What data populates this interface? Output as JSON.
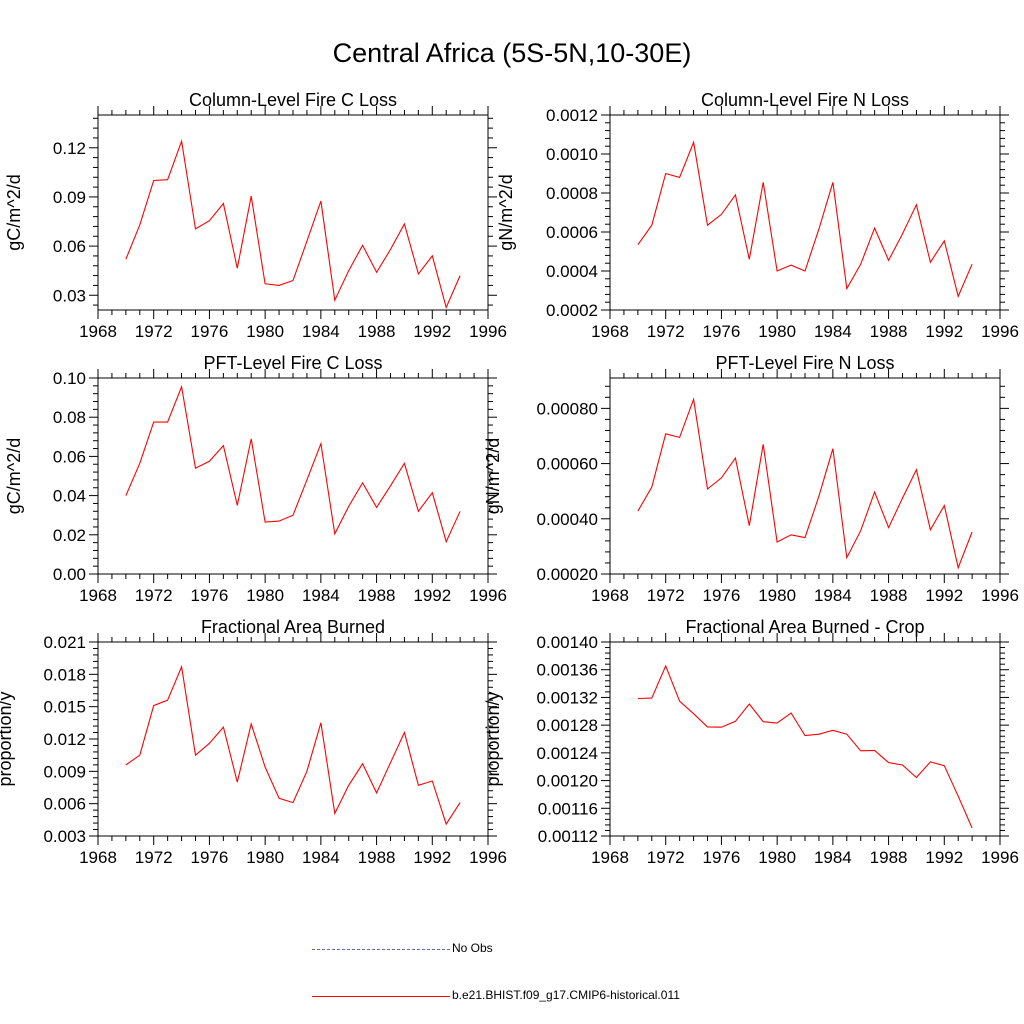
{
  "page": {
    "title": "Central Africa (5S-5N,10-30E)"
  },
  "legend": {
    "obs_label": "No Obs",
    "model_label": "b.e21.BHIST.f09_g17.CMIP6-historical.011",
    "obs_color": "#5a6aa8",
    "model_color": "#ff0000"
  },
  "chart_data": [
    {
      "type": "line",
      "title": "Column-Level Fire C Loss",
      "ylabel": "gC/m^2/d",
      "xlim": [
        1968,
        1996
      ],
      "ylim": [
        0.021,
        0.14
      ],
      "xticks": [
        "1968",
        "1972",
        "1976",
        "1980",
        "1984",
        "1988",
        "1992",
        "1996"
      ],
      "yticks": [
        {
          "v": 0.03,
          "l": "0.03"
        },
        {
          "v": 0.06,
          "l": "0.06"
        },
        {
          "v": 0.09,
          "l": "0.09"
        },
        {
          "v": 0.12,
          "l": "0.12"
        }
      ],
      "x": [
        1970,
        1971,
        1972,
        1973,
        1974,
        1975,
        1976,
        1977,
        1978,
        1979,
        1980,
        1981,
        1982,
        1983,
        1984,
        1985,
        1986,
        1987,
        1988,
        1989,
        1990,
        1991,
        1992,
        1993,
        1994
      ],
      "series": [
        {
          "values": [
            0.052,
            0.073,
            0.1,
            0.1005,
            0.124,
            0.0705,
            0.0755,
            0.086,
            0.0465,
            0.0905,
            0.037,
            0.036,
            0.039,
            0.063,
            0.0875,
            0.027,
            0.045,
            0.0605,
            0.044,
            0.058,
            0.0735,
            0.043,
            0.054,
            0.0225,
            0.042
          ]
        }
      ]
    },
    {
      "type": "line",
      "title": "Column-Level Fire N Loss",
      "ylabel": "gN/m^2/d",
      "xlim": [
        1968,
        1996
      ],
      "ylim": [
        0.0002,
        0.0012
      ],
      "xticks": [
        "1968",
        "1972",
        "1976",
        "1980",
        "1984",
        "1988",
        "1992",
        "1996"
      ],
      "yticks": [
        {
          "v": 0.0002,
          "l": "0.0002"
        },
        {
          "v": 0.0004,
          "l": "0.0004"
        },
        {
          "v": 0.0006,
          "l": "0.0006"
        },
        {
          "v": 0.0008,
          "l": "0.0008"
        },
        {
          "v": 0.001,
          "l": "0.0010"
        },
        {
          "v": 0.0012,
          "l": "0.0012"
        }
      ],
      "x": [
        1970,
        1971,
        1972,
        1973,
        1974,
        1975,
        1976,
        1977,
        1978,
        1979,
        1980,
        1981,
        1982,
        1983,
        1984,
        1985,
        1986,
        1987,
        1988,
        1989,
        1990,
        1991,
        1992,
        1993,
        1994
      ],
      "series": [
        {
          "values": [
            0.000535,
            0.000635,
            0.0009,
            0.00088,
            0.00106,
            0.000635,
            0.00069,
            0.00079,
            0.00046,
            0.000855,
            0.0004,
            0.00043,
            0.0004,
            0.000615,
            0.000855,
            0.00031,
            0.000435,
            0.00062,
            0.000455,
            0.00059,
            0.00074,
            0.000445,
            0.000555,
            0.00027,
            0.000435
          ]
        }
      ]
    },
    {
      "type": "line",
      "title": "PFT-Level Fire C Loss",
      "ylabel": "gC/m^2/d",
      "xlim": [
        1968,
        1996
      ],
      "ylim": [
        0,
        0.1
      ],
      "xticks": [
        "1968",
        "1972",
        "1976",
        "1980",
        "1984",
        "1988",
        "1992",
        "1996"
      ],
      "yticks": [
        {
          "v": 0,
          "l": "0.00"
        },
        {
          "v": 0.02,
          "l": "0.02"
        },
        {
          "v": 0.04,
          "l": "0.04"
        },
        {
          "v": 0.06,
          "l": "0.06"
        },
        {
          "v": 0.08,
          "l": "0.08"
        },
        {
          "v": 0.1,
          "l": "0.10"
        }
      ],
      "x": [
        1970,
        1971,
        1972,
        1973,
        1974,
        1975,
        1976,
        1977,
        1978,
        1979,
        1980,
        1981,
        1982,
        1983,
        1984,
        1985,
        1986,
        1987,
        1988,
        1989,
        1990,
        1991,
        1992,
        1993,
        1994
      ],
      "series": [
        {
          "values": [
            0.04,
            0.0565,
            0.0775,
            0.0775,
            0.0955,
            0.054,
            0.0575,
            0.0655,
            0.035,
            0.069,
            0.0265,
            0.027,
            0.03,
            0.048,
            0.0665,
            0.0205,
            0.0345,
            0.0465,
            0.034,
            0.045,
            0.0565,
            0.032,
            0.0415,
            0.0165,
            0.032
          ]
        }
      ]
    },
    {
      "type": "line",
      "title": "PFT-Level Fire N Loss",
      "ylabel": "gN/m^2/d",
      "xlim": [
        1968,
        1996
      ],
      "ylim": [
        0.0002,
        0.00091
      ],
      "xticks": [
        "1968",
        "1972",
        "1976",
        "1980",
        "1984",
        "1988",
        "1992",
        "1996"
      ],
      "yticks": [
        {
          "v": 0.0002,
          "l": "0.00020"
        },
        {
          "v": 0.0004,
          "l": "0.00040"
        },
        {
          "v": 0.0006,
          "l": "0.00060"
        },
        {
          "v": 0.0008,
          "l": "0.00080"
        }
      ],
      "x": [
        1970,
        1971,
        1972,
        1973,
        1974,
        1975,
        1976,
        1977,
        1978,
        1979,
        1980,
        1981,
        1982,
        1983,
        1984,
        1985,
        1986,
        1987,
        1988,
        1989,
        1990,
        1991,
        1992,
        1993,
        1994
      ],
      "series": [
        {
          "values": [
            0.000428,
            0.000515,
            0.000708,
            0.000695,
            0.000833,
            0.000508,
            0.000548,
            0.00062,
            0.000375,
            0.00067,
            0.000316,
            0.000342,
            0.000332,
            0.000482,
            0.000654,
            0.000259,
            0.000357,
            0.000497,
            0.000368,
            0.000475,
            0.000578,
            0.00036,
            0.000448,
            0.000223,
            0.000352
          ]
        }
      ]
    },
    {
      "type": "line",
      "title": "Fractional Area Burned",
      "ylabel": "proportion/y",
      "xlim": [
        1968,
        1996
      ],
      "ylim": [
        0.003,
        0.021
      ],
      "xticks": [
        "1968",
        "1972",
        "1976",
        "1980",
        "1984",
        "1988",
        "1992",
        "1996"
      ],
      "yticks": [
        {
          "v": 0.003,
          "l": "0.003"
        },
        {
          "v": 0.006,
          "l": "0.006"
        },
        {
          "v": 0.009,
          "l": "0.009"
        },
        {
          "v": 0.012,
          "l": "0.012"
        },
        {
          "v": 0.015,
          "l": "0.015"
        },
        {
          "v": 0.018,
          "l": "0.018"
        },
        {
          "v": 0.021,
          "l": "0.021"
        }
      ],
      "x": [
        1970,
        1971,
        1972,
        1973,
        1974,
        1975,
        1976,
        1977,
        1978,
        1979,
        1980,
        1981,
        1982,
        1983,
        1984,
        1985,
        1986,
        1987,
        1988,
        1989,
        1990,
        1991,
        1992,
        1993,
        1994
      ],
      "series": [
        {
          "values": [
            0.0096,
            0.0105,
            0.0151,
            0.0156,
            0.0187,
            0.0105,
            0.0116,
            0.0131,
            0.008,
            0.0134,
            0.0094,
            0.0065,
            0.0061,
            0.009,
            0.0135,
            0.0051,
            0.0077,
            0.0097,
            0.007,
            0.0098,
            0.0126,
            0.0077,
            0.0081,
            0.0041,
            0.0061
          ]
        }
      ]
    },
    {
      "type": "line",
      "title": "Fractional Area Burned - Crop",
      "ylabel": "proportion/y",
      "xlim": [
        1968,
        1996
      ],
      "ylim": [
        0.00112,
        0.0014
      ],
      "xticks": [
        "1968",
        "1972",
        "1976",
        "1980",
        "1984",
        "1988",
        "1992",
        "1996"
      ],
      "yticks": [
        {
          "v": 0.00112,
          "l": "0.00112"
        },
        {
          "v": 0.00116,
          "l": "0.00116"
        },
        {
          "v": 0.0012,
          "l": "0.00120"
        },
        {
          "v": 0.00124,
          "l": "0.00124"
        },
        {
          "v": 0.00128,
          "l": "0.00128"
        },
        {
          "v": 0.00132,
          "l": "0.00132"
        },
        {
          "v": 0.00136,
          "l": "0.00136"
        },
        {
          "v": 0.0014,
          "l": "0.00140"
        }
      ],
      "x": [
        1970,
        1971,
        1972,
        1973,
        1974,
        1975,
        1976,
        1977,
        1978,
        1979,
        1980,
        1981,
        1982,
        1983,
        1984,
        1985,
        1986,
        1987,
        1988,
        1989,
        1990,
        1991,
        1992,
        1993,
        1994
      ],
      "series": [
        {
          "values": [
            0.0013185,
            0.001319,
            0.0013655,
            0.0013145,
            0.0012965,
            0.0012775,
            0.001277,
            0.0012855,
            0.0013105,
            0.001285,
            0.001283,
            0.0012975,
            0.001265,
            0.001267,
            0.0012725,
            0.001267,
            0.001243,
            0.0012435,
            0.001226,
            0.0012225,
            0.0012045,
            0.001227,
            0.0012215,
            0.0011775,
            0.0011315
          ]
        }
      ]
    }
  ]
}
